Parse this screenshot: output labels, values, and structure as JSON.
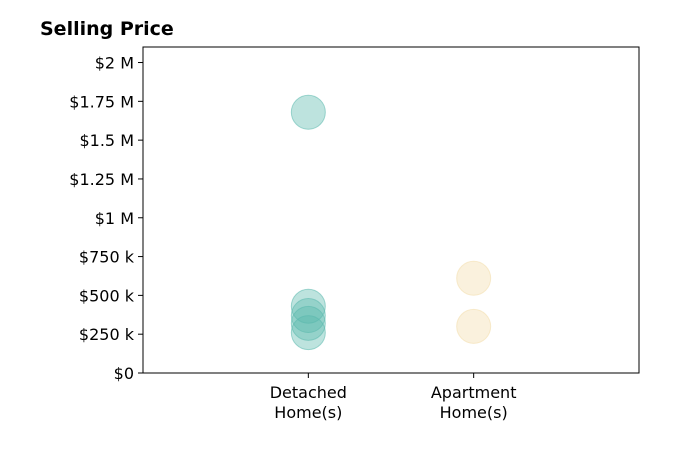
{
  "chart_data": {
    "type": "scatter",
    "title": "Selling Price",
    "xlabel": "",
    "ylabel": "",
    "categories": [
      {
        "line1": "Detached",
        "line2": "Home(s)"
      },
      {
        "line1": "Apartment",
        "line2": "Home(s)"
      }
    ],
    "y_ticks": [
      {
        "value": 0,
        "label": "$0"
      },
      {
        "value": 250000,
        "label": "$250 k"
      },
      {
        "value": 500000,
        "label": "$500 k"
      },
      {
        "value": 750000,
        "label": "$750 k"
      },
      {
        "value": 1000000,
        "label": "$1 M"
      },
      {
        "value": 1250000,
        "label": "$1.25 M"
      },
      {
        "value": 1500000,
        "label": "$1.5 M"
      },
      {
        "value": 1750000,
        "label": "$1.75 M"
      },
      {
        "value": 2000000,
        "label": "$2 M"
      }
    ],
    "ylim": [
      0,
      2100000
    ],
    "xlim": [
      -1,
      2
    ],
    "grid": false,
    "series": [
      {
        "category_index": 0,
        "color": "#5ab8ad",
        "values": [
          1680000,
          430000,
          370000,
          320000,
          260000
        ]
      },
      {
        "category_index": 1,
        "color": "#f3dca9",
        "values": [
          610000,
          300000
        ]
      }
    ]
  }
}
